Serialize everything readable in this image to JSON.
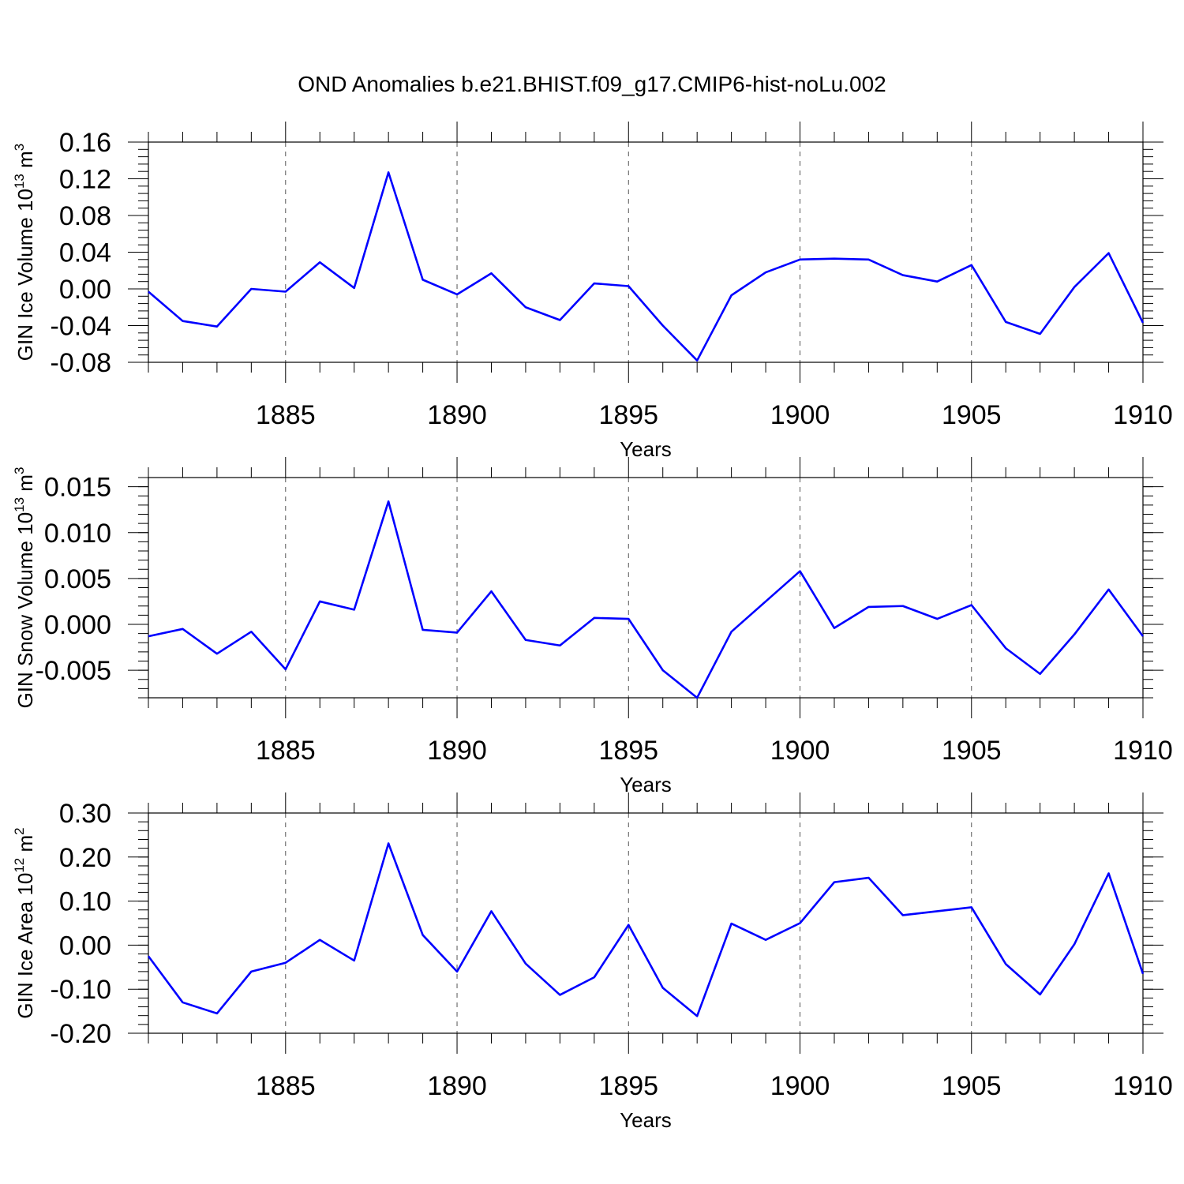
{
  "figure": {
    "title": "OND Anomalies b.e21.BHIST.f09_g17.CMIP6-hist-noLu.002"
  },
  "colors": {
    "series": "#0000ff",
    "axis": "#000000",
    "grid": "#555555"
  },
  "chart_data": [
    {
      "type": "line",
      "ylabel": "GIN Ice Volume 10",
      "ylabel_exp": "13",
      "ylabel_unit": " m",
      "ylabel_unit_exp": "3",
      "xlabel": "Years",
      "xlim": [
        1881,
        1910
      ],
      "ylim": [
        -0.08,
        0.16
      ],
      "yticks": [
        -0.08,
        -0.04,
        0.0,
        0.04,
        0.08,
        0.12,
        0.16
      ],
      "ytick_labels": [
        "-0.08",
        "-0.04",
        "0.00",
        "0.04",
        "0.08",
        "0.12",
        "0.16"
      ],
      "yminor_step": 0.008,
      "xticks": [
        1885,
        1890,
        1895,
        1900,
        1905,
        1910
      ],
      "xtick_labels": [
        "1885",
        "1890",
        "1895",
        "1900",
        "1905",
        "1910"
      ],
      "grid": "vertical dashed at major x ticks",
      "x": [
        1881,
        1882,
        1883,
        1884,
        1885,
        1886,
        1887,
        1888,
        1889,
        1890,
        1891,
        1892,
        1893,
        1894,
        1895,
        1896,
        1897,
        1898,
        1899,
        1900,
        1901,
        1902,
        1903,
        1904,
        1905,
        1906,
        1907,
        1908,
        1909,
        1910
      ],
      "series": [
        {
          "values": [
            -0.003,
            -0.035,
            -0.041,
            0.0,
            -0.003,
            0.029,
            0.001,
            0.127,
            0.01,
            -0.006,
            0.017,
            -0.02,
            -0.034,
            0.006,
            0.003,
            -0.04,
            -0.078,
            -0.007,
            0.018,
            0.032,
            0.033,
            0.032,
            0.015,
            0.008,
            0.026,
            -0.036,
            -0.049,
            0.002,
            0.039,
            -0.037
          ]
        }
      ]
    },
    {
      "type": "line",
      "ylabel": "GIN Snow Volume 10",
      "ylabel_exp": "13",
      "ylabel_unit": " m",
      "ylabel_unit_exp": "3",
      "xlabel": "Years",
      "xlim": [
        1881,
        1910
      ],
      "ylim": [
        -0.008,
        0.016
      ],
      "yticks": [
        -0.005,
        0.0,
        0.005,
        0.01,
        0.015
      ],
      "ytick_labels": [
        "-0.005",
        "0.000",
        "0.005",
        "0.010",
        "0.015"
      ],
      "yminor_step": 0.001,
      "xticks": [
        1885,
        1890,
        1895,
        1900,
        1905,
        1910
      ],
      "xtick_labels": [
        "1885",
        "1890",
        "1895",
        "1900",
        "1905",
        "1910"
      ],
      "grid": "vertical dashed at major x ticks",
      "x": [
        1881,
        1882,
        1883,
        1884,
        1885,
        1886,
        1887,
        1888,
        1889,
        1890,
        1891,
        1892,
        1893,
        1894,
        1895,
        1896,
        1897,
        1898,
        1899,
        1900,
        1901,
        1902,
        1903,
        1904,
        1905,
        1906,
        1907,
        1908,
        1909,
        1910
      ],
      "series": [
        {
          "values": [
            -0.0013,
            -0.0005,
            -0.0032,
            -0.0008,
            -0.0049,
            0.0025,
            0.0016,
            0.0134,
            -0.0006,
            -0.0009,
            0.0036,
            -0.0017,
            -0.0023,
            0.0007,
            0.0006,
            -0.005,
            -0.008,
            -0.0008,
            0.0025,
            0.0058,
            -0.0004,
            0.0019,
            0.002,
            0.0006,
            0.0021,
            -0.0026,
            -0.0054,
            -0.0011,
            0.0038,
            -0.0013
          ]
        }
      ]
    },
    {
      "type": "line",
      "ylabel": "GIN Ice Area 10",
      "ylabel_exp": "12",
      "ylabel_unit": " m",
      "ylabel_unit_exp": "2",
      "xlabel": "Years",
      "xlim": [
        1881,
        1910
      ],
      "ylim": [
        -0.2,
        0.3
      ],
      "yticks": [
        -0.2,
        -0.1,
        0.0,
        0.1,
        0.2,
        0.3
      ],
      "ytick_labels": [
        "-0.20",
        "-0.10",
        "0.00",
        "0.10",
        "0.20",
        "0.30"
      ],
      "yminor_step": 0.02,
      "xticks": [
        1885,
        1890,
        1895,
        1900,
        1905,
        1910
      ],
      "xtick_labels": [
        "1885",
        "1890",
        "1895",
        "1900",
        "1905",
        "1910"
      ],
      "grid": "vertical dashed at major x ticks",
      "x": [
        1881,
        1882,
        1883,
        1884,
        1885,
        1886,
        1887,
        1888,
        1889,
        1890,
        1891,
        1892,
        1893,
        1894,
        1895,
        1896,
        1897,
        1898,
        1899,
        1900,
        1901,
        1902,
        1903,
        1904,
        1905,
        1906,
        1907,
        1908,
        1909,
        1910
      ],
      "series": [
        {
          "values": [
            -0.025,
            -0.13,
            -0.155,
            -0.06,
            -0.04,
            0.012,
            -0.035,
            0.231,
            0.023,
            -0.06,
            0.077,
            -0.042,
            -0.113,
            -0.073,
            0.046,
            -0.097,
            -0.161,
            0.049,
            0.012,
            0.05,
            0.143,
            0.153,
            0.068,
            0.077,
            0.086,
            -0.043,
            -0.112,
            0.002,
            0.163,
            -0.065
          ]
        }
      ]
    }
  ]
}
